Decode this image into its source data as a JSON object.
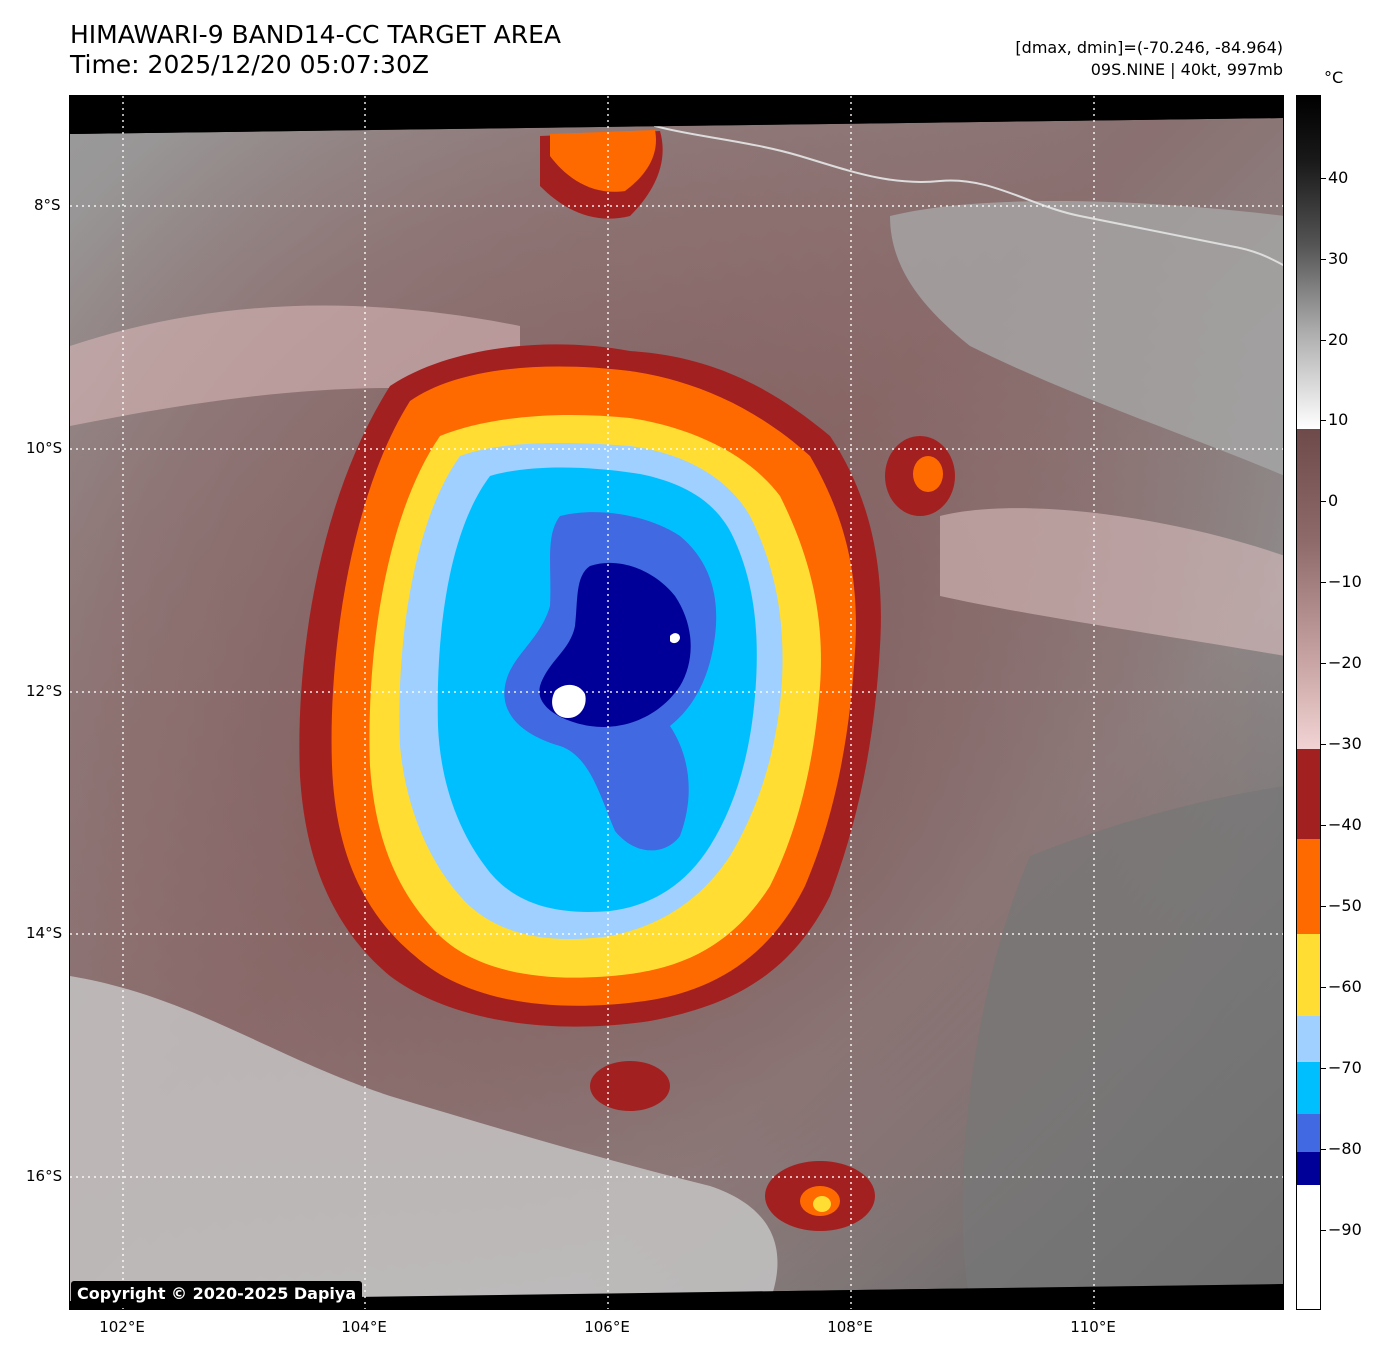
{
  "title": {
    "line1": "HIMAWARI-9 BAND14-CC TARGET AREA",
    "line2": "Time: 2025/12/20 05:07:30Z"
  },
  "meta": {
    "range": "[dmax, dmin]=(-70.246, -84.964)",
    "storm": "09S.NINE | 40kt, 997mb"
  },
  "lat_labels": [
    "8°S",
    "10°S",
    "12°S",
    "14°S",
    "16°S"
  ],
  "lon_labels": [
    "102°E",
    "104°E",
    "106°E",
    "108°E",
    "110°E"
  ],
  "colorbar": {
    "unit": "°C",
    "ticks": [
      "40",
      "30",
      "20",
      "10",
      "0",
      "−10",
      "−20",
      "−30",
      "−40",
      "−50",
      "−60",
      "−70",
      "−80",
      "−90"
    ],
    "colors": {
      "black_top": "#000000",
      "gray_mid": "#808080",
      "white_gray": "#ffffff",
      "brown": "#6e4a4a",
      "pink": "#f2d3d3",
      "dark_red": "#a32020",
      "orange": "#ff6a00",
      "yellow": "#ffdd33",
      "light_blue": "#9fd0ff",
      "cyan": "#00bfff",
      "royal_blue": "#4169e1",
      "navy": "#000099",
      "white": "#ffffff"
    }
  },
  "copyright": "Copyright © 2020-2025 Dapiya"
}
